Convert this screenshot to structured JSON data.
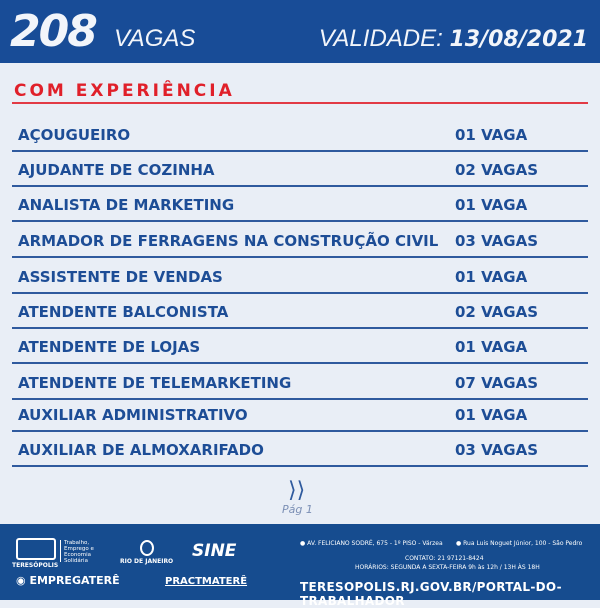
{
  "header": {
    "count": "208",
    "count_label": "VAGAS",
    "validity_label": "VALIDADE:",
    "validity_date": "13/08/2021"
  },
  "section_title": "COM EXPERIÊNCIA",
  "jobs": [
    {
      "title": "AÇOUGUEIRO",
      "qty": "01 VAGA"
    },
    {
      "title": "AJUDANTE DE COZINHA",
      "qty": "02 VAGAS"
    },
    {
      "title": "ANALISTA DE MARKETING",
      "qty": "01 VAGA"
    },
    {
      "title": "ARMADOR DE FERRAGENS NA CONSTRUÇÃO CIVIL",
      "qty": "03 VAGAS"
    },
    {
      "title": "ASSISTENTE DE VENDAS",
      "qty": "01 VAGA"
    },
    {
      "title": "ATENDENTE BALCONISTA",
      "qty": "02 VAGAS"
    },
    {
      "title": "ATENDENTE DE LOJAS",
      "qty": "01 VAGA"
    },
    {
      "title": "ATENDENTE DE TELEMARKETING",
      "qty": "07 VAGAS"
    },
    {
      "title": "AUXILIAR ADMINISTRATIVO",
      "qty": "01 VAGA"
    },
    {
      "title": "AUXILIAR DE ALMOXARIFADO",
      "qty": "03 VAGAS"
    }
  ],
  "pagination": {
    "next_icon": "double-chevron-right",
    "page_label": "Pág 1"
  },
  "footer": {
    "logo_teresopolis": "TERESÓPOLIS",
    "secretaria": "Trabalho, Emprego e Economia Solidária",
    "logo_rj": "RIO DE JANEIRO",
    "logo_sine": "SINE",
    "logo_empregatere": "EMPREGATERÊ",
    "logo_pracmatere": "PRACTMATERÊ",
    "address1": "AV. FELICIANO SODRÉ, 675 - 1º PISO - Várzea",
    "address2": "Rua Luis Noguet Júnior, 100 - São Pedro",
    "contact": "CONTATO: 21 97121-8424",
    "hours": "HORÁRIOS: SEGUNDA A SEXTA-FEIRA 9h às 12h / 13H ÀS 18H",
    "url": "TERESOPOLIS.RJ.GOV.BR/PORTAL-DO-TRABALHADOR"
  }
}
